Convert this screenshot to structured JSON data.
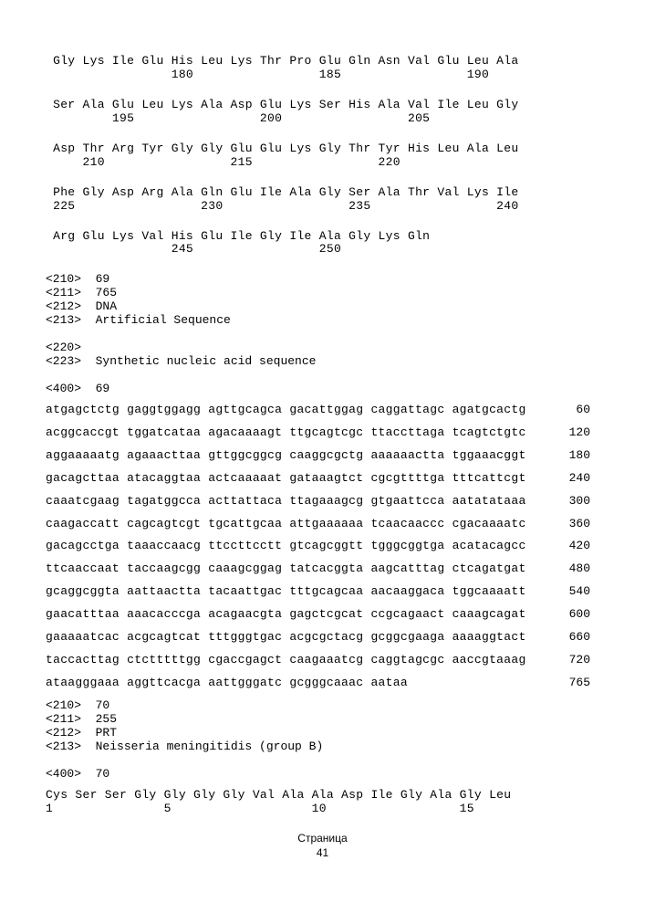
{
  "protein1": {
    "rows": [
      {
        "aa": "Gly Lys Ile Glu His Leu Lys Thr Pro Glu Gln Asn Val Glu Leu Ala",
        "nums": "                180                 185                 190"
      },
      {
        "aa": "Ser Ala Glu Leu Lys Ala Asp Glu Lys Ser His Ala Val Ile Leu Gly",
        "nums": "        195                 200                 205"
      },
      {
        "aa": "Asp Thr Arg Tyr Gly Gly Glu Glu Lys Gly Thr Tyr His Leu Ala Leu",
        "nums": "    210                 215                 220"
      },
      {
        "aa": "Phe Gly Asp Arg Ala Gln Glu Ile Ala Gly Ser Ala Thr Val Lys Ile",
        "nums": "225                 230                 235                 240"
      },
      {
        "aa": "Arg Glu Lys Val His Glu Ile Gly Ile Ala Gly Lys Gln",
        "nums": "                245                 250"
      }
    ]
  },
  "meta1": [
    "<210>  69",
    "<211>  765",
    "<212>  DNA",
    "<213>  Artificial Sequence",
    "",
    "<220>",
    "<223>  Synthetic nucleic acid sequence",
    "",
    "<400>  69"
  ],
  "dna": [
    {
      "seq": "atgagctctg gaggtggagg agttgcagca gacattggag caggattagc agatgcactg",
      "n": "60"
    },
    {
      "seq": "acggcaccgt tggatcataa agacaaaagt ttgcagtcgc ttaccttaga tcagtctgtc",
      "n": "120"
    },
    {
      "seq": "aggaaaaatg agaaacttaa gttggcggcg caaggcgctg aaaaaactta tggaaacggt",
      "n": "180"
    },
    {
      "seq": "gacagcttaa atacaggtaa actcaaaaat gataaagtct cgcgttttga tttcattcgt",
      "n": "240"
    },
    {
      "seq": "caaatcgaag tagatggcca acttattaca ttagaaagcg gtgaattcca aatatataaa",
      "n": "300"
    },
    {
      "seq": "caagaccatt cagcagtcgt tgcattgcaa attgaaaaaa tcaacaaccc cgacaaaatc",
      "n": "360"
    },
    {
      "seq": "gacagcctga taaaccaacg ttccttcctt gtcagcggtt tgggcggtga acatacagcc",
      "n": "420"
    },
    {
      "seq": "ttcaaccaat taccaagcgg caaagcggag tatcacggta aagcatttag ctcagatgat",
      "n": "480"
    },
    {
      "seq": "gcaggcggta aattaactta tacaattgac tttgcagcaa aacaaggaca tggcaaaatt",
      "n": "540"
    },
    {
      "seq": "gaacatttaa aaacacccga acagaacgta gagctcgcat ccgcagaact caaagcagat",
      "n": "600"
    },
    {
      "seq": "gaaaaatcac acgcagtcat tttgggtgac acgcgctacg gcggcgaaga aaaaggtact",
      "n": "660"
    },
    {
      "seq": "taccacttag ctctttttgg cgaccgagct caagaaatcg caggtagcgc aaccgtaaag",
      "n": "720"
    },
    {
      "seq": "ataagggaaa aggttcacga aattgggatc gcgggcaaac aataa",
      "n": "765"
    }
  ],
  "meta2": [
    "<210>  70",
    "<211>  255",
    "<212>  PRT",
    "<213>  Neisseria meningitidis (group B)",
    "",
    "<400>  70"
  ],
  "protein2": {
    "rows": [
      {
        "aa": "Cys Ser Ser Gly Gly Gly Gly Val Ala Ala Asp Ile Gly Ala Gly Leu",
        "nums": "1               5                   10                  15"
      }
    ]
  },
  "footer_text": "Страница",
  "page_number": "41"
}
